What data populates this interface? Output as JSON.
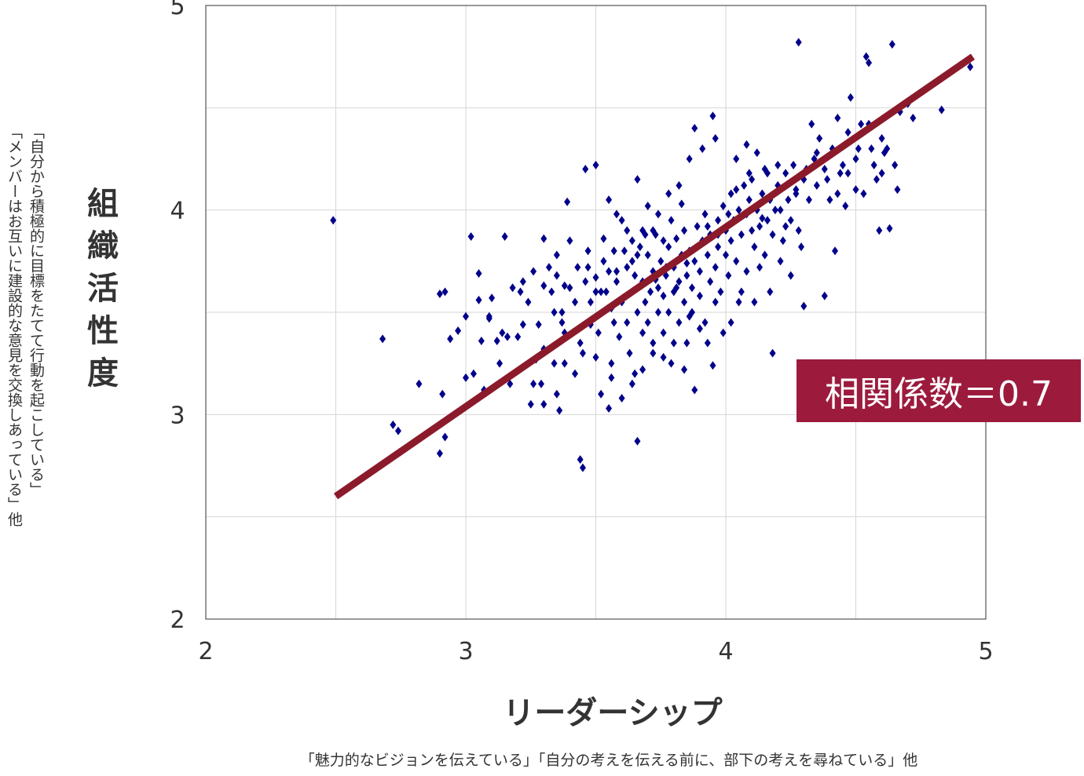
{
  "chart_data": {
    "type": "scatter",
    "xlabel": "リーダーシップ",
    "xlabel_note": "「魅力的なビジョンを伝えている」「自分の考えを伝える前に、部下の考えを尋ねている」他",
    "ylabel": "組織活性度",
    "ylabel_note": [
      "「自分から積極的に目標をたてて行動を起こしている」",
      "「メンバーはお互いに建設的な意見を交換しあっている」他"
    ],
    "xlim": [
      2,
      5
    ],
    "ylim": [
      2,
      5
    ],
    "x_ticks": [
      "2",
      "3",
      "4",
      "5"
    ],
    "y_ticks": [
      "2",
      "3",
      "4",
      "5"
    ],
    "grid": true,
    "trendline": {
      "x": [
        2.5,
        4.95
      ],
      "y": [
        2.6,
        4.75
      ],
      "color": "#8b1a2a"
    },
    "annotation": {
      "text": "相関係数＝0.7",
      "background": "#9c1b3d"
    },
    "marker_color": "#00008b",
    "points": [
      [
        2.49,
        3.95
      ],
      [
        2.68,
        3.37
      ],
      [
        2.72,
        2.95
      ],
      [
        2.74,
        2.92
      ],
      [
        2.82,
        3.15
      ],
      [
        2.9,
        2.81
      ],
      [
        2.9,
        3.59
      ],
      [
        2.91,
        3.1
      ],
      [
        2.92,
        2.89
      ],
      [
        2.92,
        3.6
      ],
      [
        2.94,
        3.37
      ],
      [
        2.97,
        3.41
      ],
      [
        3.0,
        3.48
      ],
      [
        3.02,
        3.87
      ],
      [
        3.05,
        3.69
      ],
      [
        3.05,
        3.56
      ],
      [
        3.07,
        3.12
      ],
      [
        3.09,
        3.47
      ],
      [
        3.09,
        3.48
      ],
      [
        3.1,
        3.57
      ],
      [
        3.12,
        3.36
      ],
      [
        3.13,
        3.25
      ],
      [
        3.15,
        3.87
      ],
      [
        3.16,
        3.38
      ],
      [
        3.17,
        3.15
      ],
      [
        3.2,
        3.38
      ],
      [
        3.21,
        3.6
      ],
      [
        3.22,
        3.44
      ],
      [
        3.24,
        3.55
      ],
      [
        3.25,
        3.05
      ],
      [
        3.27,
        3.27
      ],
      [
        3.28,
        3.44
      ],
      [
        3.29,
        3.15
      ],
      [
        3.3,
        3.32
      ],
      [
        3.3,
        3.86
      ],
      [
        3.32,
        3.72
      ],
      [
        3.33,
        3.6
      ],
      [
        3.34,
        3.25
      ],
      [
        3.35,
        3.78
      ],
      [
        3.35,
        3.68
      ],
      [
        3.36,
        3.02
      ],
      [
        3.37,
        3.5
      ],
      [
        3.38,
        3.63
      ],
      [
        3.38,
        3.4
      ],
      [
        3.39,
        4.04
      ],
      [
        3.4,
        3.85
      ],
      [
        3.41,
        3.4
      ],
      [
        3.42,
        3.2
      ],
      [
        3.43,
        3.72
      ],
      [
        3.44,
        3.35
      ],
      [
        3.44,
        2.78
      ],
      [
        3.45,
        2.74
      ],
      [
        3.46,
        3.65
      ],
      [
        3.47,
        3.8
      ],
      [
        3.48,
        3.44
      ],
      [
        3.48,
        3.55
      ],
      [
        3.5,
        3.6
      ],
      [
        3.5,
        3.67
      ],
      [
        3.51,
        3.4
      ],
      [
        3.52,
        3.1
      ],
      [
        3.53,
        3.86
      ],
      [
        3.54,
        3.6
      ],
      [
        3.55,
        3.7
      ],
      [
        3.55,
        3.03
      ],
      [
        3.56,
        3.25
      ],
      [
        3.56,
        3.52
      ],
      [
        3.57,
        3.45
      ],
      [
        3.58,
        3.7
      ],
      [
        3.58,
        3.65
      ],
      [
        3.59,
        3.38
      ],
      [
        3.6,
        3.55
      ],
      [
        3.61,
        3.8
      ],
      [
        3.62,
        3.9
      ],
      [
        3.62,
        3.45
      ],
      [
        3.63,
        3.3
      ],
      [
        3.64,
        3.75
      ],
      [
        3.64,
        3.6
      ],
      [
        3.65,
        3.2
      ],
      [
        3.65,
        3.68
      ],
      [
        3.66,
        3.5
      ],
      [
        3.66,
        2.87
      ],
      [
        3.67,
        3.82
      ],
      [
        3.68,
        3.65
      ],
      [
        3.68,
        3.4
      ],
      [
        3.69,
        3.55
      ],
      [
        3.7,
        3.78
      ],
      [
        3.7,
        3.45
      ],
      [
        3.71,
        3.6
      ],
      [
        3.72,
        3.3
      ],
      [
        3.72,
        3.7
      ],
      [
        3.73,
        3.88
      ],
      [
        3.74,
        3.62
      ],
      [
        3.74,
        3.5
      ],
      [
        3.75,
        3.75
      ],
      [
        3.76,
        3.4
      ],
      [
        3.76,
        3.58
      ],
      [
        3.77,
        3.68
      ],
      [
        3.78,
        3.82
      ],
      [
        3.78,
        3.5
      ],
      [
        3.79,
        3.25
      ],
      [
        3.8,
        3.72
      ],
      [
        3.8,
        3.6
      ],
      [
        3.81,
        3.86
      ],
      [
        3.82,
        3.45
      ],
      [
        3.82,
        3.65
      ],
      [
        3.83,
        3.78
      ],
      [
        3.84,
        3.55
      ],
      [
        3.84,
        3.9
      ],
      [
        3.85,
        3.68
      ],
      [
        3.85,
        3.35
      ],
      [
        3.86,
        3.8
      ],
      [
        3.87,
        3.62
      ],
      [
        3.87,
        3.5
      ],
      [
        3.88,
        3.75
      ],
      [
        3.88,
        4.4
      ],
      [
        3.89,
        3.92
      ],
      [
        3.9,
        3.58
      ],
      [
        3.9,
        3.7
      ],
      [
        3.91,
        3.85
      ],
      [
        3.92,
        3.45
      ],
      [
        3.92,
        3.98
      ],
      [
        3.93,
        3.78
      ],
      [
        3.94,
        3.65
      ],
      [
        3.94,
        3.88
      ],
      [
        3.95,
        4.46
      ],
      [
        3.95,
        3.24
      ],
      [
        3.96,
        3.72
      ],
      [
        3.97,
        3.95
      ],
      [
        3.97,
        3.82
      ],
      [
        3.98,
        3.6
      ],
      [
        3.99,
        4.02
      ],
      [
        4.0,
        3.78
      ],
      [
        4.0,
        3.9
      ],
      [
        4.01,
        3.68
      ],
      [
        4.02,
        4.08
      ],
      [
        4.02,
        3.85
      ],
      [
        4.03,
        3.95
      ],
      [
        4.04,
        3.75
      ],
      [
        4.05,
        4.0
      ],
      [
        4.05,
        3.55
      ],
      [
        4.06,
        3.88
      ],
      [
        4.07,
        4.12
      ],
      [
        4.08,
        3.98
      ],
      [
        4.08,
        3.7
      ],
      [
        4.09,
        4.05
      ],
      [
        4.1,
        3.9
      ],
      [
        4.1,
        4.15
      ],
      [
        4.11,
        3.82
      ],
      [
        4.12,
        4.0
      ],
      [
        4.13,
        3.92
      ],
      [
        4.14,
        4.08
      ],
      [
        4.15,
        3.78
      ],
      [
        4.15,
        4.2
      ],
      [
        4.16,
        3.95
      ],
      [
        4.17,
        4.05
      ],
      [
        4.18,
        3.88
      ],
      [
        4.18,
        3.3
      ],
      [
        4.2,
        4.12
      ],
      [
        4.21,
        4.0
      ],
      [
        4.22,
        3.85
      ],
      [
        4.23,
        4.18
      ],
      [
        4.24,
        4.05
      ],
      [
        4.25,
        3.95
      ],
      [
        4.26,
        4.22
      ],
      [
        4.27,
        4.1
      ],
      [
        4.28,
        3.9
      ],
      [
        4.28,
        4.82
      ],
      [
        4.3,
        4.15
      ],
      [
        4.3,
        3.53
      ],
      [
        4.32,
        4.05
      ],
      [
        4.33,
        4.42
      ],
      [
        4.34,
        4.25
      ],
      [
        4.35,
        4.12
      ],
      [
        4.36,
        4.35
      ],
      [
        4.38,
        3.58
      ],
      [
        4.38,
        4.2
      ],
      [
        4.4,
        4.05
      ],
      [
        4.41,
        4.3
      ],
      [
        4.42,
        3.8
      ],
      [
        4.43,
        4.45
      ],
      [
        4.44,
        4.18
      ],
      [
        4.45,
        4.22
      ],
      [
        4.46,
        4.02
      ],
      [
        4.47,
        4.38
      ],
      [
        4.48,
        4.55
      ],
      [
        4.5,
        4.1
      ],
      [
        4.5,
        4.25
      ],
      [
        4.52,
        4.42
      ],
      [
        4.53,
        4.08
      ],
      [
        4.54,
        4.75
      ],
      [
        4.55,
        4.72
      ],
      [
        4.56,
        4.3
      ],
      [
        4.57,
        4.22
      ],
      [
        4.58,
        4.15
      ],
      [
        4.59,
        3.9
      ],
      [
        4.6,
        4.35
      ],
      [
        4.61,
        4.28
      ],
      [
        4.62,
        4.3
      ],
      [
        4.63,
        3.91
      ],
      [
        4.64,
        4.81
      ],
      [
        4.65,
        4.22
      ],
      [
        4.66,
        4.1
      ],
      [
        4.67,
        4.48
      ],
      [
        4.7,
        4.52
      ],
      [
        4.72,
        4.45
      ],
      [
        4.83,
        4.49
      ],
      [
        4.94,
        4.7
      ],
      [
        3.6,
        3.95
      ],
      [
        3.7,
        4.02
      ],
      [
        3.72,
        3.9
      ],
      [
        3.76,
        3.85
      ],
      [
        3.79,
        3.95
      ],
      [
        3.83,
        4.03
      ],
      [
        3.86,
        3.48
      ],
      [
        3.9,
        3.42
      ],
      [
        3.93,
        3.35
      ],
      [
        3.96,
        3.55
      ],
      [
        3.99,
        3.4
      ],
      [
        4.02,
        3.45
      ],
      [
        4.06,
        3.6
      ],
      [
        4.11,
        3.55
      ],
      [
        4.13,
        3.72
      ],
      [
        4.17,
        3.6
      ],
      [
        4.21,
        3.75
      ],
      [
        4.25,
        3.68
      ],
      [
        4.29,
        3.82
      ],
      [
        3.46,
        4.2
      ],
      [
        3.5,
        4.22
      ],
      [
        3.55,
        4.05
      ],
      [
        3.66,
        4.15
      ],
      [
        3.58,
        3.98
      ],
      [
        3.64,
        3.85
      ],
      [
        3.68,
        3.9
      ],
      [
        3.74,
        3.98
      ],
      [
        3.78,
        4.08
      ],
      [
        3.82,
        4.12
      ],
      [
        3.86,
        4.25
      ],
      [
        3.91,
        4.3
      ],
      [
        3.96,
        4.35
      ],
      [
        4.04,
        4.25
      ],
      [
        4.08,
        4.32
      ],
      [
        4.12,
        4.28
      ],
      [
        4.16,
        4.18
      ],
      [
        4.2,
        4.22
      ],
      [
        3.4,
        3.62
      ],
      [
        3.42,
        3.55
      ],
      [
        3.45,
        3.3
      ],
      [
        3.5,
        3.28
      ],
      [
        3.52,
        3.6
      ],
      [
        3.56,
        3.18
      ],
      [
        3.6,
        3.08
      ],
      [
        3.64,
        3.15
      ],
      [
        3.68,
        3.22
      ],
      [
        3.72,
        3.35
      ],
      [
        3.76,
        3.28
      ],
      [
        3.8,
        3.35
      ],
      [
        3.84,
        3.22
      ],
      [
        3.88,
        3.12
      ],
      [
        3.26,
        3.7
      ],
      [
        3.3,
        3.63
      ],
      [
        3.34,
        3.5
      ],
      [
        3.37,
        3.45
      ],
      [
        3.18,
        3.62
      ],
      [
        3.22,
        3.65
      ],
      [
        3.06,
        3.36
      ],
      [
        3.14,
        3.4
      ],
      [
        3.0,
        3.18
      ],
      [
        3.03,
        3.2
      ],
      [
        3.35,
        3.1
      ],
      [
        3.38,
        3.25
      ],
      [
        3.26,
        3.15
      ],
      [
        3.3,
        3.05
      ],
      [
        3.47,
        3.72
      ],
      [
        3.53,
        3.75
      ],
      [
        3.57,
        3.8
      ],
      [
        3.62,
        3.72
      ],
      [
        3.66,
        3.78
      ],
      [
        3.69,
        3.88
      ],
      [
        3.73,
        3.66
      ],
      [
        3.77,
        3.72
      ],
      [
        3.81,
        3.62
      ],
      [
        3.85,
        3.74
      ],
      [
        3.89,
        3.82
      ],
      [
        3.93,
        3.92
      ],
      [
        3.97,
        3.88
      ],
      [
        4.01,
        3.98
      ],
      [
        4.04,
        4.1
      ],
      [
        4.09,
        4.18
      ],
      [
        4.14,
        3.96
      ],
      [
        4.19,
        4.0
      ],
      [
        4.23,
        3.92
      ],
      [
        4.27,
        4.08
      ],
      [
        4.31,
        4.2
      ],
      [
        4.35,
        4.28
      ],
      [
        4.39,
        4.15
      ],
      [
        4.43,
        4.08
      ],
      [
        4.47,
        4.18
      ],
      [
        4.51,
        4.3
      ],
      [
        4.55,
        4.42
      ],
      [
        4.6,
        4.18
      ]
    ]
  }
}
